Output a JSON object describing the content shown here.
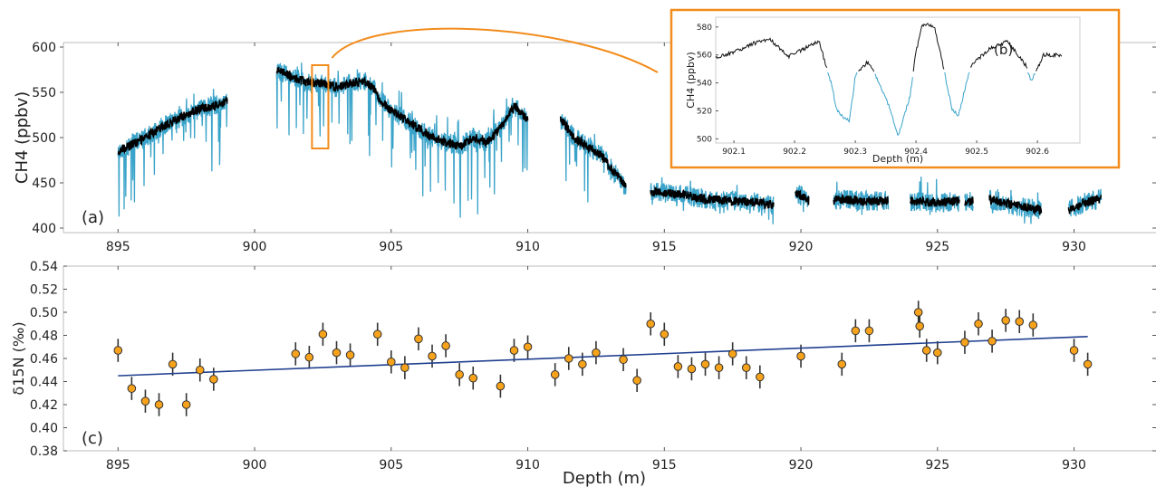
{
  "chart_data": [
    {
      "panel": "(a)",
      "type": "line",
      "ylabel": "CH4 (ppbv)",
      "xlim": [
        893,
        933
      ],
      "ylim": [
        395,
        605
      ],
      "xticks": [
        895,
        900,
        905,
        910,
        915,
        920,
        925,
        930
      ],
      "yticks": [
        400,
        450,
        500,
        550,
        600
      ],
      "highlight_box": {
        "x": [
          902.1,
          902.7
        ],
        "y": [
          488,
          580
        ]
      },
      "colors": {
        "raw": "#3aa3c9",
        "smoothed": "#000000",
        "highlight": "#f28c1c"
      },
      "segments": [
        {
          "x": [
            895.0,
            895.5,
            896.0,
            896.5,
            897.0,
            897.5,
            898.0,
            898.5,
            899.0
          ],
          "y": [
            485,
            492,
            500,
            510,
            518,
            525,
            532,
            535,
            540
          ]
        },
        {
          "x": [
            900.8,
            901.5,
            902.0,
            902.5,
            903.0,
            903.5,
            904.0,
            904.5
          ],
          "y": [
            575,
            565,
            560,
            560,
            555,
            560,
            563,
            550
          ]
        },
        {
          "x": [
            904.5,
            905.0,
            905.5,
            906.0,
            906.5,
            907.0,
            907.5,
            908.0,
            908.5,
            909.0,
            909.5,
            910.0
          ],
          "y": [
            545,
            530,
            520,
            510,
            500,
            495,
            490,
            500,
            495,
            510,
            535,
            520
          ]
        },
        {
          "x": [
            911.2,
            911.7,
            912.2,
            912.7,
            913.2,
            913.6
          ],
          "y": [
            520,
            500,
            490,
            480,
            460,
            445
          ]
        },
        {
          "x": [
            914.5,
            915.5,
            916.5,
            917.5,
            918.5,
            919.0
          ],
          "y": [
            440,
            438,
            432,
            430,
            428,
            425
          ]
        },
        {
          "x": [
            919.8,
            920.3
          ],
          "y": [
            440,
            430
          ]
        },
        {
          "x": [
            921.2,
            922.2,
            923.2
          ],
          "y": [
            432,
            430,
            430
          ]
        },
        {
          "x": [
            924.0,
            925.0,
            925.8
          ],
          "y": [
            430,
            428,
            430
          ]
        },
        {
          "x": [
            926.0,
            926.3
          ],
          "y": [
            428,
            430
          ]
        },
        {
          "x": [
            926.9,
            927.8,
            928.8
          ],
          "y": [
            432,
            425,
            420
          ]
        },
        {
          "x": [
            929.8,
            930.4,
            931.0
          ],
          "y": [
            420,
            428,
            433
          ]
        }
      ]
    },
    {
      "panel": "(b)",
      "type": "line",
      "xlabel": "Depth (m)",
      "ylabel": "CH4 (ppbv)",
      "xlim": [
        902.07,
        902.67
      ],
      "ylim": [
        497,
        587
      ],
      "xticks": [
        "902.1",
        "902.2",
        "902.3",
        "902.4",
        "902.5",
        "902.6"
      ],
      "yticks": [
        "500",
        "520",
        "540",
        "560",
        "580"
      ],
      "x": [
        902.07,
        902.1,
        902.13,
        902.16,
        902.19,
        902.21,
        902.24,
        902.26,
        902.27,
        902.29,
        902.3,
        902.32,
        902.34,
        902.36,
        902.37,
        902.39,
        902.4,
        902.41,
        902.43,
        902.44,
        902.46,
        902.47,
        902.49,
        902.52,
        902.55,
        902.58,
        902.59,
        902.61,
        902.64
      ],
      "y": [
        558,
        562,
        568,
        571,
        559,
        563,
        570,
        540,
        520,
        512,
        545,
        555,
        540,
        518,
        502,
        530,
        562,
        582,
        580,
        562,
        520,
        517,
        552,
        564,
        570,
        553,
        541,
        560,
        560
      ]
    },
    {
      "panel": "(c)",
      "type": "scatter",
      "xlabel": "Depth (m)",
      "ylabel": "δ15N (‰)",
      "xlim": [
        893,
        933
      ],
      "ylim": [
        0.38,
        0.54
      ],
      "xticks": [
        895,
        900,
        905,
        910,
        915,
        920,
        925,
        930
      ],
      "yticks": [
        "0.38",
        "0.40",
        "0.42",
        "0.44",
        "0.46",
        "0.48",
        "0.50",
        "0.52",
        "0.54"
      ],
      "error": 0.01,
      "trend": {
        "x": [
          895.0,
          930.5
        ],
        "y": [
          0.445,
          0.479
        ]
      },
      "colors": {
        "points": "#f7a21b",
        "trend": "#1f3f8f"
      },
      "x": [
        895.0,
        895.5,
        896.0,
        896.5,
        897.0,
        897.5,
        898.0,
        898.5,
        901.5,
        902.0,
        902.5,
        903.0,
        903.5,
        904.5,
        905.0,
        905.5,
        906.0,
        906.5,
        907.0,
        907.5,
        908.0,
        909.0,
        909.5,
        910.0,
        911.0,
        911.5,
        912.0,
        912.5,
        913.5,
        914.0,
        914.5,
        915.0,
        915.5,
        916.0,
        916.5,
        917.0,
        917.5,
        918.0,
        918.5,
        920.0,
        921.5,
        922.0,
        922.5,
        924.3,
        924.35,
        924.6,
        925.0,
        926.0,
        926.5,
        927.0,
        927.5,
        928.0,
        928.5,
        930.0,
        930.5
      ],
      "y": [
        0.467,
        0.434,
        0.423,
        0.42,
        0.455,
        0.42,
        0.45,
        0.442,
        0.464,
        0.461,
        0.481,
        0.465,
        0.463,
        0.481,
        0.457,
        0.452,
        0.477,
        0.462,
        0.471,
        0.446,
        0.443,
        0.436,
        0.467,
        0.47,
        0.446,
        0.46,
        0.455,
        0.465,
        0.459,
        0.441,
        0.49,
        0.481,
        0.453,
        0.451,
        0.455,
        0.452,
        0.464,
        0.452,
        0.444,
        0.462,
        0.455,
        0.484,
        0.484,
        0.5,
        0.488,
        0.467,
        0.465,
        0.474,
        0.49,
        0.475,
        0.493,
        0.492,
        0.489,
        0.467,
        0.455
      ]
    }
  ]
}
